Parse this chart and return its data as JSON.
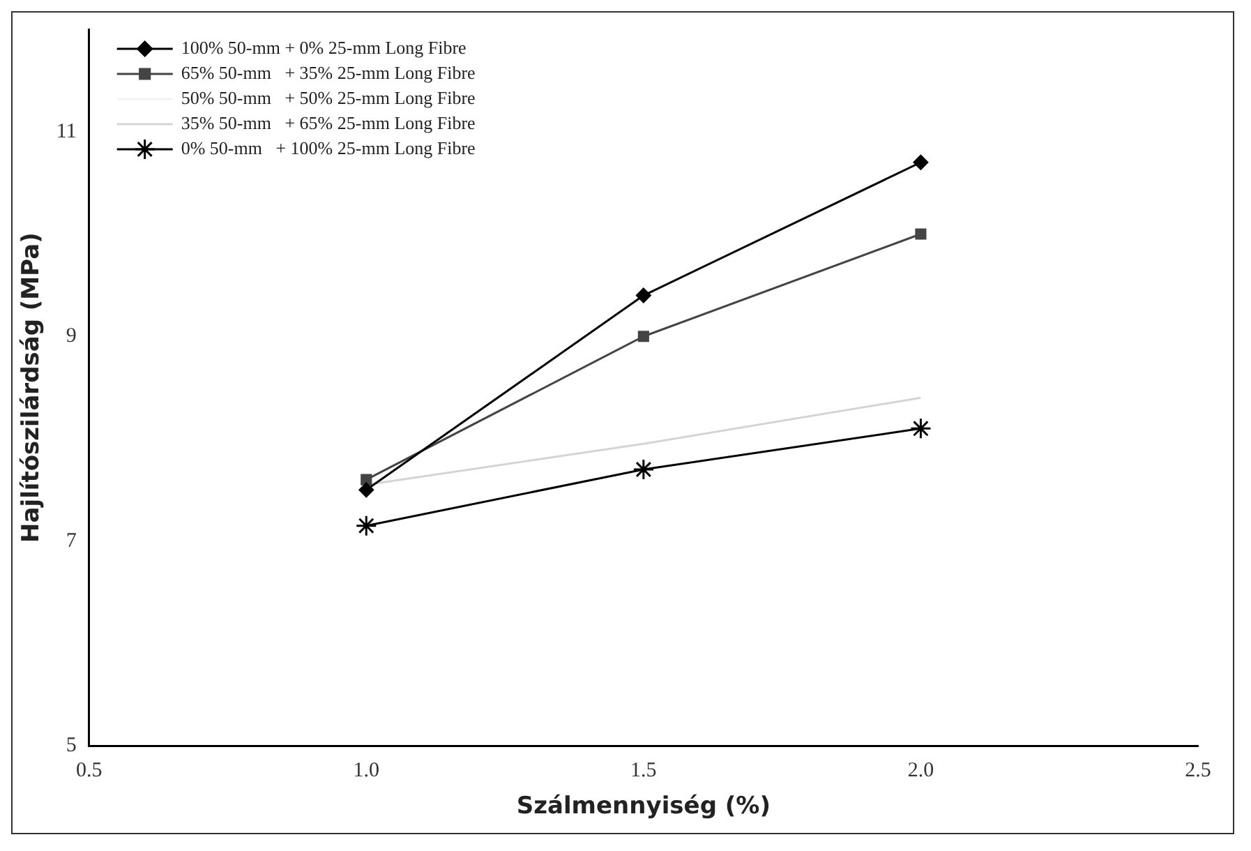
{
  "chart_data": {
    "type": "line",
    "xlabel": "Szálmennyiség (%)",
    "ylabel": "Hajlítószilárdság (MPa)",
    "x": [
      1.0,
      1.5,
      2.0
    ],
    "series": [
      {
        "name": "100% 50-mm + 0% 25-mm Long Fibre",
        "color": "#000000",
        "marker": "diamond",
        "values": [
          7.5,
          9.4,
          10.7
        ]
      },
      {
        "name": "65% 50-mm   + 35% 25-mm Long Fibre",
        "color": "#444444",
        "marker": "square",
        "values": [
          7.6,
          9.0,
          10.0
        ]
      },
      {
        "name": "50% 50-mm   + 50% 25-mm Long Fibre",
        "color": "#f2f2f2",
        "marker": "none",
        "values": [
          null,
          null,
          null
        ]
      },
      {
        "name": "35% 50-mm   + 65% 25-mm Long Fibre",
        "color": "#d4d4d4",
        "marker": "none",
        "values": [
          7.55,
          7.95,
          8.4
        ]
      },
      {
        "name": "0% 50-mm   + 100% 25-mm Long Fibre",
        "color": "#000000",
        "marker": "cross",
        "values": [
          7.15,
          7.7,
          8.1
        ]
      }
    ],
    "xlim": [
      0.5,
      2.5
    ],
    "xticks": [
      {
        "value": 0.5,
        "label": "0.5"
      },
      {
        "value": 1.0,
        "label": "1.0"
      },
      {
        "value": 1.5,
        "label": "1.5"
      },
      {
        "value": 2.0,
        "label": "2.0"
      },
      {
        "value": 2.5,
        "label": "2.5"
      }
    ],
    "ylim": [
      5,
      12
    ],
    "yticks": [
      5,
      7,
      9,
      11
    ],
    "grid": false,
    "legend": "top left"
  }
}
